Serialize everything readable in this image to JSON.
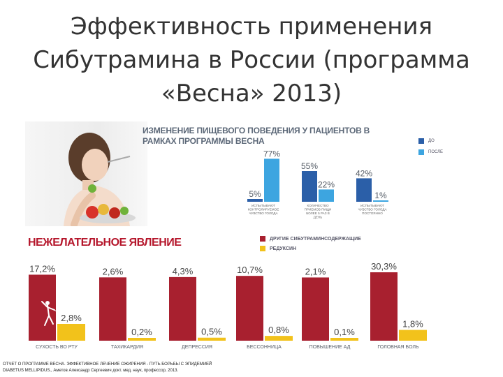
{
  "slide": {
    "title_lines": [
      "Эффективность применения",
      "Сибутрамина в России (программа",
      "«Весна» 2013)"
    ]
  },
  "top_panel": {
    "title_lines": [
      "ИЗМЕНЕНИЕ ПИЩЕВОГО ПОВЕДЕНИЯ У ПАЦИЕНТОВ В",
      "РАМКАХ ПРОГРАММЫ ВЕСНА"
    ],
    "legend": [
      "ДО",
      "ПОСЛЕ"
    ]
  },
  "bottom_panel": {
    "title": "НЕЖЕЛАТЕЛЬНОЕ ЯВЛЕНИЕ",
    "legend": [
      "ДРУГИЕ СИБУТРАМИНСОДЕРЖАЩИЕ",
      "РЕДУКСИН"
    ]
  },
  "footnote": {
    "line1": "ОТЧЕТ О ПРОГРАММЕ ВЕСНА. ЭФФЕКТИВНОЕ ЛЕЧЕНИЕ ОЖИРЕНИЯ - ПУТЬ БОРЬБЫ С ЭПИДЕМИЕЙ",
    "line2": "DIABETUS MELLIPIDUS., Аметов Александр Сергеевич докт. мед. наук, профессор, 2013."
  },
  "colors": {
    "before": "#2b5fa8",
    "after": "#3da5e0",
    "other_sibutramine": "#a8202f",
    "reduxin": "#f2c21b",
    "title_text": "#333333"
  },
  "icons": [
    "photo-woman-eating-salad",
    "gymnast-silhouette-icon"
  ],
  "chart_data": [
    {
      "type": "bar",
      "title": "ИЗМЕНЕНИЕ ПИЩЕВОГО ПОВЕДЕНИЯ У ПАЦИЕНТОВ В РАМКАХ ПРОГРАММЫ ВЕСНА",
      "categories": [
        "ИСПЫТЫВАЮТ КОНТРОЛИРУЕМОЕ ЧУВСТВО ГОЛОДА",
        "КОЛИЧЕСТВО ПРИЕМОВ ПИЩИ БОЛЕЕ 5 РАЗ В ДЕНЬ",
        "ИСПЫТЫВАЮТ ЧУВСТВО ГОЛОДА ПОСТОЯННО"
      ],
      "series": [
        {
          "name": "ДО",
          "values": [
            5,
            55,
            42
          ]
        },
        {
          "name": "ПОСЛЕ",
          "values": [
            77,
            22,
            1
          ]
        }
      ],
      "data_labels": [
        [
          "5%",
          "55%",
          "42%"
        ],
        [
          "77%",
          "22%",
          "1%"
        ]
      ],
      "ylim": [
        0,
        100
      ],
      "grid": false,
      "legend": "top-right"
    },
    {
      "type": "bar",
      "title": "НЕЖЕЛАТЕЛЬНОЕ ЯВЛЕНИЕ",
      "categories": [
        "СУХОСТЬ ВО РТУ",
        "ТАХИКАРДИЯ",
        "ДЕПРЕССИЯ",
        "БЕССОННИЦА",
        "ПОВЫШЕНИЕ АД",
        "ГОЛОВНАЯ БОЛЬ"
      ],
      "series": [
        {
          "name": "ДРУГИЕ СИБУТРАМИНСОДЕРЖАЩИЕ",
          "values": [
            17.2,
            2.6,
            4.3,
            10.7,
            2.1,
            30.3
          ]
        },
        {
          "name": "РЕДУКСИН",
          "values": [
            2.8,
            0.2,
            0.5,
            0.8,
            0.1,
            1.8
          ]
        }
      ],
      "data_labels": [
        [
          "17,2%",
          "2,6%",
          "4,3%",
          "10,7%",
          "2,1%",
          "30,3%"
        ],
        [
          "2,8%",
          "0,2%",
          "0,5%",
          "0,8%",
          "0,1%",
          "1,8%"
        ]
      ],
      "grid": false,
      "legend": "top-right"
    }
  ]
}
